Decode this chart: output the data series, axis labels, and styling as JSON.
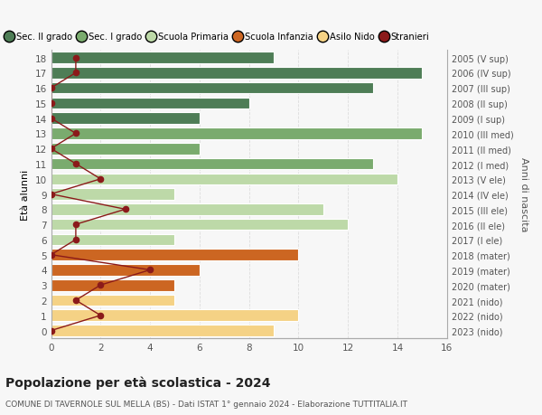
{
  "ages": [
    18,
    17,
    16,
    15,
    14,
    13,
    12,
    11,
    10,
    9,
    8,
    7,
    6,
    5,
    4,
    3,
    2,
    1,
    0
  ],
  "right_labels": [
    "2005 (V sup)",
    "2006 (IV sup)",
    "2007 (III sup)",
    "2008 (II sup)",
    "2009 (I sup)",
    "2010 (III med)",
    "2011 (II med)",
    "2012 (I med)",
    "2013 (V ele)",
    "2014 (IV ele)",
    "2015 (III ele)",
    "2016 (II ele)",
    "2017 (I ele)",
    "2018 (mater)",
    "2019 (mater)",
    "2020 (mater)",
    "2021 (nido)",
    "2022 (nido)",
    "2023 (nido)"
  ],
  "bar_values": [
    9,
    15,
    13,
    8,
    6,
    15,
    6,
    13,
    14,
    5,
    11,
    12,
    5,
    10,
    6,
    5,
    5,
    10,
    9
  ],
  "bar_colors": [
    "#4e7d56",
    "#4e7d56",
    "#4e7d56",
    "#4e7d56",
    "#4e7d56",
    "#7aab6e",
    "#7aab6e",
    "#7aab6e",
    "#bdd9a8",
    "#bdd9a8",
    "#bdd9a8",
    "#bdd9a8",
    "#bdd9a8",
    "#cc6622",
    "#cc6622",
    "#cc6622",
    "#f5d285",
    "#f5d285",
    "#f5d285"
  ],
  "stranieri_values": [
    1,
    1,
    0,
    0,
    0,
    1,
    0,
    1,
    2,
    0,
    3,
    1,
    1,
    0,
    4,
    2,
    1,
    2,
    0
  ],
  "stranieri_color": "#8b1a1a",
  "title": "Popolazione per età scolastica - 2024",
  "subtitle": "COMUNE DI TAVERNOLE SUL MELLA (BS) - Dati ISTAT 1° gennaio 2024 - Elaborazione TUTTITALIA.IT",
  "ylabel": "Età alunni",
  "right_ylabel": "Anni di nascita",
  "xlim": [
    0,
    16
  ],
  "xticks": [
    0,
    2,
    4,
    6,
    8,
    10,
    12,
    14,
    16
  ],
  "legend_labels": [
    "Sec. II grado",
    "Sec. I grado",
    "Scuola Primaria",
    "Scuola Infanzia",
    "Asilo Nido",
    "Stranieri"
  ],
  "legend_colors": [
    "#4e7d56",
    "#7aab6e",
    "#bdd9a8",
    "#cc6622",
    "#f5d285",
    "#8b1a1a"
  ],
  "bg_color": "#f7f7f7",
  "grid_color": "#dddddd"
}
